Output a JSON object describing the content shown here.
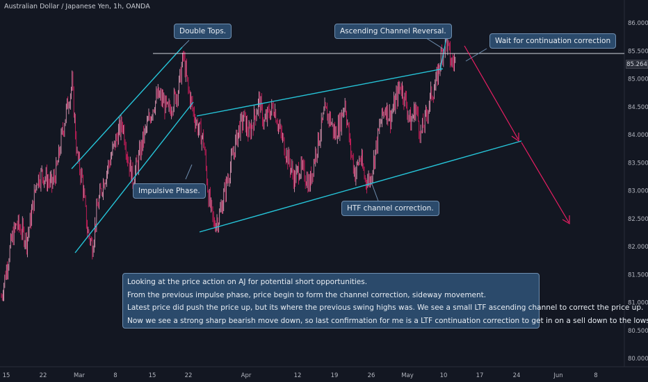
{
  "chart_title": "Australian Dollar / Japanese Yen, 1h, OANDA",
  "annotations": {
    "double_tops": "Double Tops.",
    "channel_reversal": "Ascending Channel Reversal.",
    "wait_correction": "Wait for continuation correction",
    "impulsive": "Impulsive Phase.",
    "htf_channel": "HTF channel correction."
  },
  "summary": [
    "Looking at the price action on AJ for potential short opportunities.",
    "From the previous impulse phase, price begin to form the channel correction, sideway movement.",
    "Latest price did push the price up, but its where the previous swing highs was. We see a small LTF ascending channel to correct the price up.",
    "Now we see a strong sharp bearish move down, so last confirmation for me is a LTF continuation correction to get in on a sell down to the lows."
  ],
  "colors": {
    "background": "#131722",
    "candles": "#e91e63",
    "channel_lines": "#26c6da",
    "projection_arrow": "#e91e63",
    "resistance_line": "#d1d4dc",
    "note_fill": "#2b4a6b"
  },
  "chart_data": {
    "type": "line",
    "title": "Australian Dollar / Japanese Yen, 1h, OANDA",
    "current_price": "85.264",
    "y_axis_ticks": [
      "86.000",
      "85.500",
      "85.000",
      "84.500",
      "84.000",
      "83.500",
      "83.000",
      "82.500",
      "82.000",
      "81.500",
      "81.000",
      "80.500",
      "80.000"
    ],
    "ylim": [
      79.9,
      86.3
    ],
    "x_axis_ticks": [
      "15",
      "22",
      "Mar",
      "8",
      "15",
      "22",
      "Apr",
      "12",
      "19",
      "26",
      "May",
      "10",
      "17",
      "24",
      "Jun",
      "8"
    ],
    "series": [
      {
        "values": [
          81.1,
          81.6,
          82.1,
          82.4,
          82.3,
          82.1,
          82.6,
          83.2,
          83.3,
          83.2,
          83.1,
          83.4,
          84.0,
          84.5,
          84.9,
          83.6,
          83.2,
          82.3,
          82.0,
          82.7,
          83.1,
          83.4,
          83.7,
          84.0,
          84.2,
          83.6,
          83.2,
          83.5,
          83.9,
          84.2,
          84.5,
          84.7,
          84.6,
          84.4,
          84.6,
          84.8,
          85.4,
          84.8,
          84.4,
          84.1,
          83.9,
          82.9,
          82.4,
          82.5,
          82.9,
          83.3,
          83.7,
          84.1,
          84.3,
          84.0,
          84.3,
          84.6,
          84.2,
          84.4,
          84.5,
          84.1,
          83.8,
          83.5,
          83.2,
          83.4,
          83.3,
          83.1,
          83.6,
          84.0,
          84.4,
          84.3,
          84.0,
          84.2,
          84.6,
          83.8,
          83.3,
          83.6,
          83.2,
          83.2,
          83.7,
          84.2,
          84.5,
          84.3,
          84.6,
          84.9,
          84.6,
          84.2,
          84.5,
          84.0,
          84.3,
          84.7,
          84.9,
          85.4,
          85.7,
          85.3,
          85.3
        ]
      }
    ],
    "resistance_level": 85.45,
    "grid": false,
    "legend": "none"
  }
}
